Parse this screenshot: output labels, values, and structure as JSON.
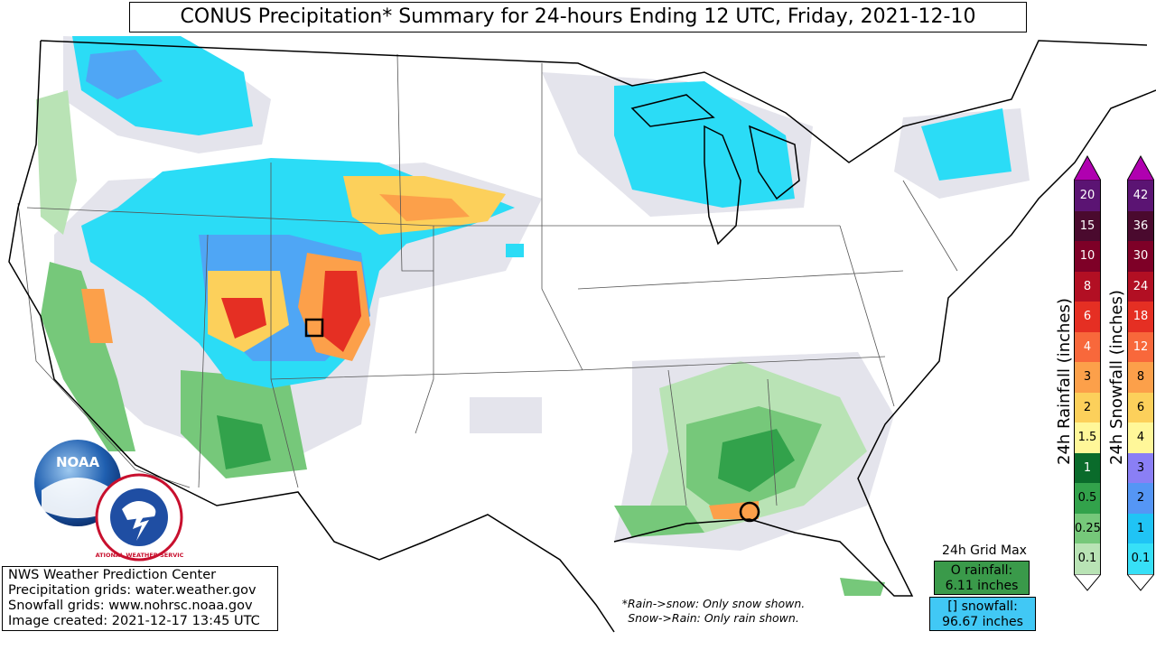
{
  "title": "CONUS Precipitation* Summary for 24-hours Ending 12 UTC, Friday, 2021-12-10",
  "credits": [
    "NWS Weather Prediction Center",
    "Precipitation grids: water.weather.gov",
    "Snowfall grids: www.nohrsc.noaa.gov",
    "Image created: 2021-12-17 13:45 UTC"
  ],
  "notes": [
    "*Rain->snow: Only snow shown.",
    "Snow->Rain: Only rain shown."
  ],
  "grid_max": {
    "title": "24h Grid Max",
    "rain_label": "O rainfall:",
    "rain_value": "6.11 inches",
    "snow_label": "[] snowfall:",
    "snow_value": "96.67 inches"
  },
  "rain_legend": {
    "label": "24h Rainfall (inches)",
    "levels": [
      "0.1",
      "0.25",
      "0.5",
      "1",
      "1.5",
      "2",
      "3",
      "4",
      "6",
      "8",
      "10",
      "15",
      "20"
    ],
    "colors": [
      "#b9e3b5",
      "#76c87a",
      "#32a24b",
      "#0a6b2b",
      "#fff799",
      "#fcd05b",
      "#fca04a",
      "#f8683b",
      "#e52f23",
      "#b20f23",
      "#7e0027",
      "#4a0a2e",
      "#5b1473"
    ],
    "top_color": "#b000b0"
  },
  "snow_legend": {
    "label": "24h Snowfall (inches)",
    "levels": [
      "0.1",
      "1",
      "2",
      "3",
      "4",
      "6",
      "8",
      "12",
      "18",
      "24",
      "30",
      "36",
      "42"
    ],
    "colors": [
      "#37e0f7",
      "#20c4f5",
      "#5596f5",
      "#8a7ff5",
      "#fff799",
      "#fcd05b",
      "#fca04a",
      "#f8683b",
      "#e52f23",
      "#b20f23",
      "#7e0027",
      "#4a0a2e",
      "#5b1473"
    ],
    "top_color": "#b000b0"
  },
  "logos": {
    "noaa_text": "NOAA",
    "nws_ring_text": "NATIONAL WEATHER SERVICE"
  },
  "palette": {
    "rain_light": "#b9e3b5",
    "rain_mid": "#76c87a",
    "rain_dark": "#32a24b",
    "snow_cyan": "#2bdcf6",
    "snow_blue": "#4fa6f5",
    "snow_purple": "#8a7ff5",
    "trace_gray": "#e4e4ec"
  }
}
